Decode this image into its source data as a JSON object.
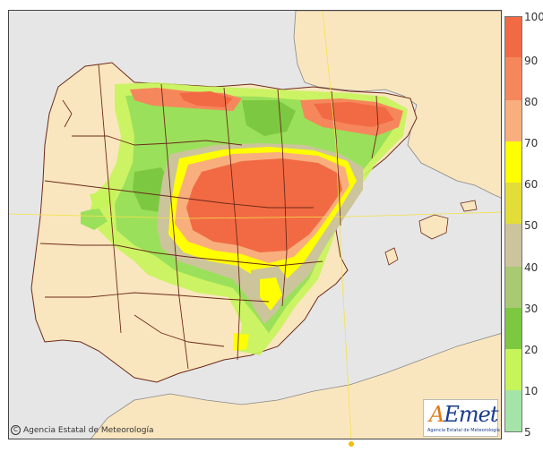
{
  "map": {
    "colors": {
      "sea": "#e6e6e6",
      "land": "#fae6be",
      "border": "#6b2a1a",
      "gridline": "#f2e24a"
    }
  },
  "legend": {
    "labels": [
      "100",
      "90",
      "80",
      "70",
      "60",
      "50",
      "40",
      "30",
      "20",
      "10",
      "5"
    ],
    "colors": [
      "#f26a43",
      "#f6875c",
      "#f9ae7e",
      "#fde98f",
      "#ffff00",
      "#e3dd38",
      "#ccc49b",
      "#a9c973",
      "#7cc840",
      "#9be05a",
      "#c6f45a",
      "#a5e4a8"
    ]
  },
  "copyright": {
    "symbol": "C",
    "text": "Agencia Estatal de Meteorología"
  },
  "logo": {
    "a": "A",
    "rest": "Emet",
    "subtitle": "Agencia Estatal de Meteorología"
  }
}
